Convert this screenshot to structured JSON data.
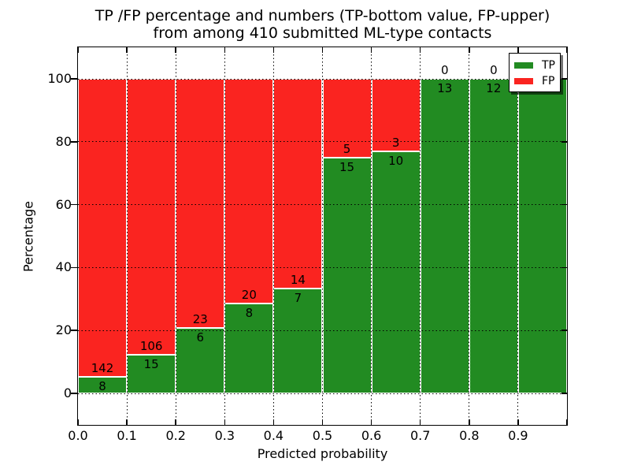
{
  "title_line1": "TP /FP percentage and numbers (TP-bottom value, FP-upper)",
  "title_line2": "from among 410 submitted ML-type contacts",
  "chart_data": {
    "type": "bar",
    "stacked": true,
    "orientation": "vertical",
    "bin_width": 0.1,
    "categories": [
      "0.0-0.1",
      "0.1-0.2",
      "0.2-0.3",
      "0.3-0.4",
      "0.4-0.5",
      "0.5-0.6",
      "0.6-0.7",
      "0.7-0.8",
      "0.8-0.9",
      "0.9-1.0"
    ],
    "series": [
      {
        "name": "TP",
        "color": "#228b22",
        "counts": [
          8,
          15,
          6,
          8,
          7,
          15,
          10,
          13,
          12,
          3
        ]
      },
      {
        "name": "FP",
        "color": "#fa2420",
        "counts": [
          142,
          106,
          23,
          20,
          14,
          5,
          3,
          0,
          0,
          0
        ]
      }
    ],
    "tp_percent_of_bin": [
      5.33,
      12.4,
      20.69,
      28.57,
      33.33,
      75.0,
      76.92,
      100.0,
      100.0,
      100.0
    ],
    "xlabel": "Predicted probability",
    "ylabel": "Percentage",
    "x_ticks": [
      "0.0",
      "0.1",
      "0.2",
      "0.3",
      "0.4",
      "0.5",
      "0.6",
      "0.7",
      "0.8",
      "0.9"
    ],
    "y_ticks": [
      0,
      20,
      40,
      60,
      80,
      100
    ],
    "xlim": [
      0.0,
      1.0
    ],
    "ylim": [
      -10,
      110
    ],
    "grid": true,
    "grid_style": "dotted",
    "legend": {
      "position": "upper right",
      "entries": [
        {
          "label": "TP",
          "color": "#228b22"
        },
        {
          "label": "FP",
          "color": "#fa2420"
        }
      ]
    }
  }
}
